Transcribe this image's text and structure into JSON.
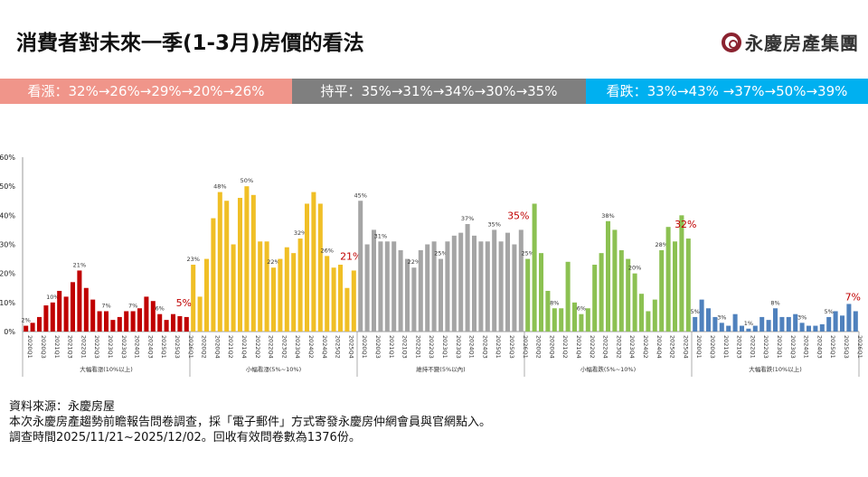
{
  "title": "消費者對未來一季(1-3月)房價的看法",
  "logo_text": "永慶房產集團",
  "summary_bands": [
    {
      "text": "看漲：32%→26%→29%→20%→26%",
      "color": "#f0958a"
    },
    {
      "text": "持平：35%→31%→34%→30%→35%",
      "color": "#7f7f7f"
    },
    {
      "text": "看跌：33%→43% →37%→50%→39%",
      "color": "#00b0f0"
    }
  ],
  "notes": [
    "資料來源：永慶房屋",
    "本次永慶房產趨勢前瞻報告問卷調查，採「電子郵件」方式寄發永慶房仲網會員與官網點入。",
    "調查時間2025/11/21~2025/12/02。回收有效問卷數為1376份。"
  ],
  "chart_data": {
    "type": "bar",
    "ylim": [
      0,
      60
    ],
    "yticks": [
      "0%",
      "10%",
      "20%",
      "30%",
      "40%",
      "50%",
      "60%"
    ],
    "grid": false,
    "quarters": [
      "2020Q1",
      "2020Q2",
      "2020Q3",
      "2020Q4",
      "2021Q1",
      "2021Q2",
      "2021Q3",
      "2021Q4",
      "2022Q1",
      "2022Q2",
      "2022Q3",
      "2022Q4",
      "2023Q1",
      "2023Q2",
      "2023Q3",
      "2023Q4",
      "2024Q1",
      "2024Q2",
      "2024Q3",
      "2024Q4",
      "2025Q1",
      "2025Q2",
      "2025Q3",
      "2025Q4",
      "2026Q1"
    ],
    "series": [
      {
        "name": "大幅看漲(10%以上)",
        "color": "#c00000",
        "values": [
          2,
          3,
          5,
          9,
          10,
          14,
          12,
          17,
          21,
          15,
          11,
          7,
          7,
          4,
          5,
          7,
          7,
          8,
          12,
          10.5,
          6,
          4,
          6,
          5.3,
          5
        ],
        "labels": {
          "0": "2%",
          "4": "10%",
          "8": "21%",
          "12": "7%",
          "16": "7%",
          "20": "6%"
        },
        "latest_label": "5%"
      },
      {
        "name": "小幅看漲(5%~10%)",
        "color": "#f0bf26",
        "values": [
          23,
          12,
          25,
          39,
          48,
          45,
          30,
          46,
          50,
          47,
          31,
          31,
          22,
          25,
          29,
          27,
          32,
          44,
          48,
          44,
          26,
          22,
          23,
          15,
          21
        ],
        "labels": {
          "0": "23%",
          "4": "48%",
          "8": "50%",
          "12": "22%",
          "16": "32%",
          "20": "26%"
        },
        "latest_label": "21%"
      },
      {
        "name": "維持不變(5%以內)",
        "color": "#a5a5a5",
        "values": [
          45,
          30,
          35,
          31,
          31,
          31,
          28,
          25,
          22,
          28,
          30,
          31,
          25,
          31,
          33,
          34,
          37,
          33,
          31,
          31,
          35,
          31,
          34,
          30,
          35
        ],
        "labels": {
          "0": "45%",
          "3": "31%",
          "8": "22%",
          "12": "25%",
          "16": "37%",
          "20": "35%"
        },
        "latest_label": "35%"
      },
      {
        "name": "小幅看跌(5%~10%)",
        "color": "#8cc152",
        "values": [
          25,
          44,
          27,
          14,
          8,
          8,
          24,
          10,
          6,
          8,
          23,
          27,
          38,
          35,
          28,
          25,
          20,
          13,
          7,
          11,
          28,
          36,
          31,
          40,
          32
        ],
        "labels": {
          "0": "25%",
          "4": "8%",
          "8": "6%",
          "12": "38%",
          "16": "20%",
          "20": "28%"
        },
        "latest_label": "32%"
      },
      {
        "name": "大幅看跌(10%以上)",
        "color": "#4f81bd",
        "values": [
          5,
          11,
          8,
          5,
          3,
          2,
          6,
          2,
          1,
          2,
          5,
          4,
          8,
          5,
          5,
          6,
          3,
          2,
          2,
          2.5,
          5,
          7,
          5.5,
          9.5,
          7
        ],
        "labels": {
          "0": "5%",
          "4": "3%",
          "8": "1%",
          "12": "8%",
          "16": "3%",
          "20": "5%"
        },
        "latest_label": "7%"
      }
    ],
    "latest_label_color": "#c00000"
  }
}
